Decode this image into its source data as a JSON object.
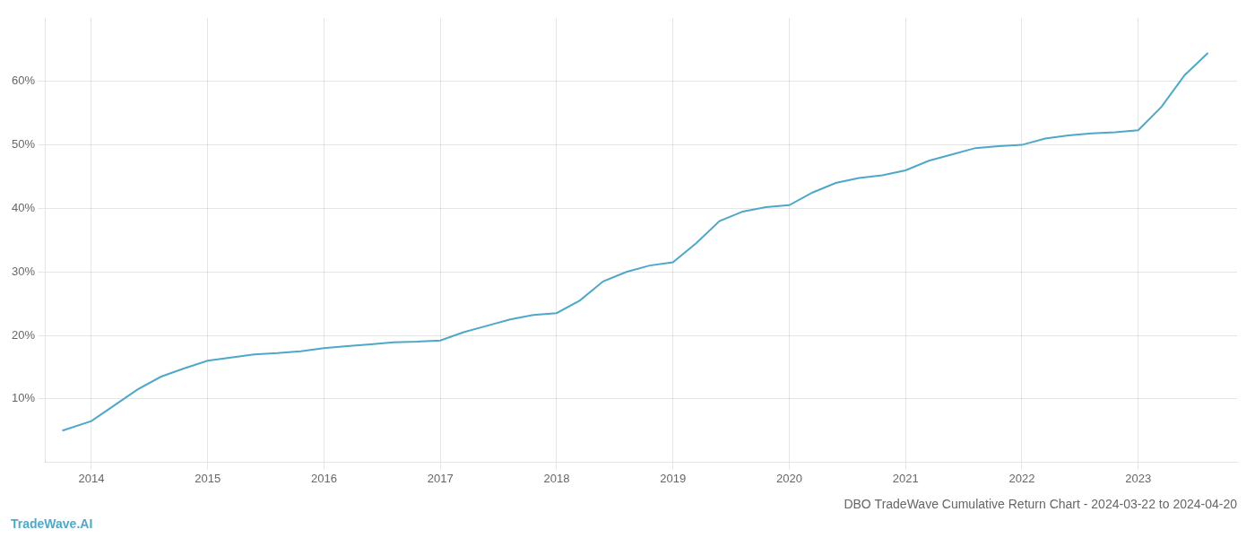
{
  "chart_data": {
    "type": "line",
    "title": "DBO TradeWave Cumulative Return Chart - 2024-03-22 to 2024-04-20",
    "annotations": [
      "TradeWave.AI"
    ],
    "color": "#4fa8c8",
    "grid": true,
    "x": [
      2013.75,
      2014.0,
      2014.2,
      2014.4,
      2014.6,
      2014.8,
      2015.0,
      2015.2,
      2015.4,
      2015.6,
      2015.8,
      2016.0,
      2016.2,
      2016.4,
      2016.6,
      2016.8,
      2017.0,
      2017.2,
      2017.4,
      2017.6,
      2017.8,
      2018.0,
      2018.2,
      2018.4,
      2018.6,
      2018.8,
      2019.0,
      2019.2,
      2019.4,
      2019.6,
      2019.8,
      2020.0,
      2020.2,
      2020.4,
      2020.6,
      2020.8,
      2021.0,
      2021.2,
      2021.4,
      2021.6,
      2021.8,
      2022.0,
      2022.2,
      2022.4,
      2022.6,
      2022.8,
      2023.0,
      2023.2,
      2023.4,
      2023.6
    ],
    "values": [
      5.0,
      6.5,
      9.0,
      11.5,
      13.5,
      14.8,
      16.0,
      16.5,
      17.0,
      17.2,
      17.5,
      18.0,
      18.3,
      18.6,
      18.9,
      19.0,
      19.2,
      20.5,
      21.5,
      22.5,
      23.2,
      23.5,
      25.5,
      28.5,
      30.0,
      31.0,
      31.5,
      34.5,
      38.0,
      39.5,
      40.2,
      40.5,
      42.5,
      44.0,
      44.8,
      45.2,
      46.0,
      47.5,
      48.5,
      49.5,
      49.8,
      50.0,
      51.0,
      51.5,
      51.8,
      52.0,
      52.3,
      56.0,
      61.0,
      64.5
    ],
    "xlim": [
      2013.6,
      2023.85
    ],
    "xticks": [
      2014,
      2015,
      2016,
      2017,
      2018,
      2019,
      2020,
      2021,
      2022,
      2023
    ],
    "ylim": [
      0,
      70
    ],
    "yticks": [
      {
        "value": 10,
        "label": "10%"
      },
      {
        "value": 20,
        "label": "20%"
      },
      {
        "value": 30,
        "label": "30%"
      },
      {
        "value": 40,
        "label": "40%"
      },
      {
        "value": 50,
        "label": "50%"
      },
      {
        "value": 60,
        "label": "60%"
      }
    ]
  }
}
